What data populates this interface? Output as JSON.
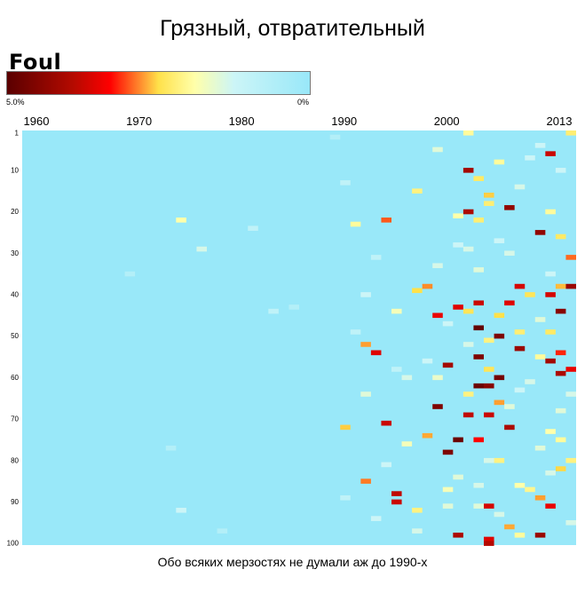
{
  "title": "Грязный, отвратительный",
  "caption": "Обо всяких мерзостях не думали аж до 1990-х",
  "legend": {
    "title": "Foul",
    "min_label": "5.0%",
    "max_label": "0%",
    "gradient_colors": [
      "#5a0000",
      "#b50a00",
      "#ff0000",
      "#ffe14a",
      "#ffffaa",
      "#ccf5f7",
      "#99e8f9"
    ]
  },
  "chart_data": {
    "type": "heatmap",
    "title": "",
    "x_tick_labels": [
      "1960",
      "1970",
      "1980",
      "1990",
      "2000",
      "2013"
    ],
    "x_tick_values": [
      1960,
      1970,
      1980,
      1990,
      2000,
      2013
    ],
    "y_tick_labels": [
      "1",
      "10",
      "20",
      "30",
      "40",
      "50",
      "60",
      "70",
      "80",
      "90",
      "100"
    ],
    "y_tick_values": [
      1,
      10,
      20,
      30,
      40,
      50,
      60,
      70,
      80,
      90,
      100
    ],
    "xlim": [
      1960,
      2013
    ],
    "ylim": [
      1,
      100
    ],
    "background_value": 0,
    "value_range": [
      0,
      5.0
    ],
    "unit": "%",
    "cells": [
      [
        1975,
        22,
        0.9
      ],
      [
        1977,
        29,
        0.5
      ],
      [
        1982,
        24,
        0.3
      ],
      [
        1970,
        35,
        0.2
      ],
      [
        1984,
        44,
        0.3
      ],
      [
        1986,
        43,
        0.2
      ],
      [
        1974,
        77,
        0.2
      ],
      [
        1975,
        92,
        0.4
      ],
      [
        1979,
        97,
        0.2
      ],
      [
        1990,
        2,
        0.2
      ],
      [
        1991,
        13,
        0.3
      ],
      [
        1992,
        23,
        1.0
      ],
      [
        1993,
        40,
        0.4
      ],
      [
        1993,
        64,
        0.6
      ],
      [
        1993,
        52,
        2.3
      ],
      [
        1991,
        72,
        1.8
      ],
      [
        1993,
        85,
        2.6
      ],
      [
        1994,
        54,
        3.6
      ],
      [
        1995,
        22,
        2.8
      ],
      [
        1995,
        71,
        3.8
      ],
      [
        1996,
        44,
        0.8
      ],
      [
        1996,
        90,
        3.8
      ],
      [
        1996,
        88,
        3.9
      ],
      [
        1997,
        60,
        0.5
      ],
      [
        1998,
        15,
        1.2
      ],
      [
        1998,
        39,
        1.6
      ],
      [
        1998,
        92,
        1.2
      ],
      [
        1999,
        38,
        2.5
      ],
      [
        1999,
        74,
        2.2
      ],
      [
        2000,
        5,
        0.6
      ],
      [
        2000,
        45,
        3.5
      ],
      [
        2000,
        67,
        4.6
      ],
      [
        2001,
        57,
        4.2
      ],
      [
        2001,
        78,
        4.6
      ],
      [
        2001,
        87,
        0.8
      ],
      [
        2002,
        21,
        0.9
      ],
      [
        2002,
        43,
        3.6
      ],
      [
        2002,
        75,
        4.8
      ],
      [
        2002,
        98,
        4.1
      ],
      [
        2003,
        1,
        1.0
      ],
      [
        2003,
        10,
        4.2
      ],
      [
        2003,
        20,
        4.1
      ],
      [
        2003,
        44,
        1.5
      ],
      [
        2003,
        64,
        1.2
      ],
      [
        2003,
        69,
        3.9
      ],
      [
        2004,
        12,
        1.4
      ],
      [
        2004,
        22,
        1.3
      ],
      [
        2004,
        42,
        3.8
      ],
      [
        2004,
        48,
        4.9
      ],
      [
        2004,
        55,
        4.6
      ],
      [
        2004,
        62,
        4.8
      ],
      [
        2004,
        75,
        3.3
      ],
      [
        2004,
        91,
        0.6
      ],
      [
        2005,
        16,
        1.8
      ],
      [
        2005,
        18,
        1.3
      ],
      [
        2005,
        51,
        1.2
      ],
      [
        2005,
        58,
        1.5
      ],
      [
        2005,
        62,
        4.5
      ],
      [
        2005,
        69,
        3.8
      ],
      [
        2005,
        91,
        3.7
      ],
      [
        2005,
        99,
        3.6
      ],
      [
        2005,
        101,
        4.0
      ],
      [
        2006,
        8,
        1.0
      ],
      [
        2006,
        45,
        1.6
      ],
      [
        2006,
        50,
        4.6
      ],
      [
        2006,
        60,
        4.7
      ],
      [
        2006,
        66,
        2.3
      ],
      [
        2006,
        80,
        1.2
      ],
      [
        2007,
        19,
        4.4
      ],
      [
        2007,
        42,
        3.6
      ],
      [
        2007,
        72,
        4.1
      ],
      [
        2007,
        96,
        2.2
      ],
      [
        2008,
        38,
        3.7
      ],
      [
        2008,
        49,
        1.3
      ],
      [
        2008,
        53,
        4.3
      ],
      [
        2008,
        86,
        0.9
      ],
      [
        2008,
        98,
        1.0
      ],
      [
        2009,
        40,
        1.5
      ],
      [
        2009,
        87,
        1.1
      ],
      [
        2010,
        4,
        0.4
      ],
      [
        2010,
        25,
        4.4
      ],
      [
        2010,
        55,
        1.0
      ],
      [
        2010,
        89,
        2.3
      ],
      [
        2010,
        98,
        4.3
      ],
      [
        2011,
        6,
        3.8
      ],
      [
        2011,
        20,
        1.0
      ],
      [
        2011,
        40,
        3.7
      ],
      [
        2011,
        49,
        1.4
      ],
      [
        2011,
        56,
        4.2
      ],
      [
        2011,
        73,
        0.9
      ],
      [
        2011,
        91,
        3.5
      ],
      [
        2012,
        38,
        2.0
      ],
      [
        2012,
        44,
        4.5
      ],
      [
        2012,
        54,
        3.1
      ],
      [
        2012,
        59,
        4.1
      ],
      [
        2012,
        75,
        1.0
      ],
      [
        2012,
        82,
        1.7
      ],
      [
        2012,
        26,
        1.4
      ],
      [
        2013,
        1,
        1.3
      ],
      [
        2013,
        31,
        2.7
      ],
      [
        2013,
        38,
        4.3
      ],
      [
        2013,
        58,
        3.5
      ],
      [
        2013,
        80,
        1.2
      ],
      [
        1997,
        76,
        0.8
      ],
      [
        1998,
        97,
        0.5
      ],
      [
        1999,
        56,
        0.4
      ],
      [
        2000,
        33,
        0.5
      ],
      [
        2001,
        47,
        0.4
      ],
      [
        2002,
        84,
        0.6
      ],
      [
        2003,
        29,
        0.5
      ],
      [
        2004,
        34,
        0.6
      ],
      [
        2005,
        80,
        0.5
      ],
      [
        2006,
        27,
        0.4
      ],
      [
        2007,
        67,
        0.6
      ],
      [
        2008,
        14,
        0.5
      ],
      [
        2009,
        61,
        0.5
      ],
      [
        2010,
        46,
        0.6
      ],
      [
        2011,
        83,
        0.5
      ],
      [
        2012,
        10,
        0.4
      ],
      [
        2013,
        64,
        0.5
      ],
      [
        1994,
        31,
        0.3
      ],
      [
        1995,
        81,
        0.4
      ],
      [
        1996,
        58,
        0.3
      ],
      [
        1992,
        49,
        0.3
      ],
      [
        1991,
        89,
        0.3
      ],
      [
        1994,
        94,
        0.4
      ],
      [
        2000,
        60,
        0.7
      ],
      [
        2001,
        91,
        0.6
      ],
      [
        2003,
        52,
        0.5
      ],
      [
        2004,
        86,
        0.5
      ],
      [
        2007,
        30,
        0.5
      ],
      [
        2009,
        7,
        0.4
      ],
      [
        2010,
        77,
        0.6
      ],
      [
        2011,
        35,
        0.4
      ],
      [
        2012,
        68,
        0.6
      ],
      [
        2013,
        95,
        0.5
      ],
      [
        2008,
        63,
        0.4
      ],
      [
        2006,
        93,
        0.5
      ],
      [
        2002,
        28,
        0.4
      ]
    ]
  }
}
